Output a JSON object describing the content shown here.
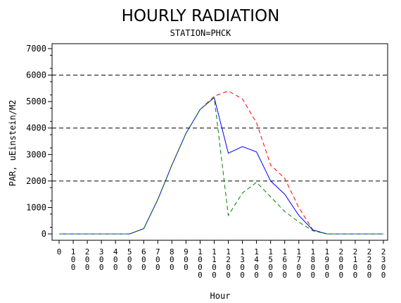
{
  "chart_data": {
    "type": "line",
    "title": "HOURLY RADIATION",
    "subtitle": "STATION=PHCK",
    "xlabel": "Hour",
    "ylabel": "PAR, uEinstein/M2",
    "ylim": [
      0,
      7000
    ],
    "xlim": [
      0,
      2300
    ],
    "y_ticks": [
      "0",
      "1000",
      "2000",
      "3000",
      "4000",
      "5000",
      "6000",
      "7000"
    ],
    "x_ticks": [
      "0",
      "100",
      "200",
      "300",
      "400",
      "500",
      "600",
      "700",
      "800",
      "900",
      "1000",
      "1100",
      "1200",
      "1300",
      "1400",
      "1500",
      "1600",
      "1700",
      "1800",
      "1900",
      "2000",
      "2100",
      "2200",
      "2300"
    ],
    "gridlines_y": [
      2000,
      4000,
      6000
    ],
    "grid_style": "dashed",
    "legend": "none",
    "x": [
      0,
      100,
      200,
      300,
      400,
      500,
      600,
      700,
      800,
      900,
      1000,
      1100,
      1200,
      1300,
      1400,
      1500,
      1600,
      1700,
      1800,
      1900,
      2000,
      2100,
      2200,
      2300
    ],
    "series": [
      {
        "color": "#ff0000",
        "dash": "dashed",
        "values": [
          0,
          0,
          0,
          0,
          0,
          0,
          200,
          1300,
          2600,
          3800,
          4700,
          5200,
          5400,
          5100,
          4200,
          2600,
          2100,
          1000,
          150,
          0,
          0,
          0,
          0,
          0
        ]
      },
      {
        "color": "#0000ff",
        "dash": "solid",
        "values": [
          0,
          0,
          0,
          0,
          0,
          0,
          200,
          1300,
          2600,
          3800,
          4700,
          5150,
          3050,
          3300,
          3100,
          2000,
          1500,
          700,
          150,
          0,
          0,
          0,
          0,
          0
        ]
      },
      {
        "color": "#008000",
        "dash": "dashed",
        "values": [
          0,
          0,
          0,
          0,
          0,
          0,
          200,
          1300,
          2600,
          3800,
          4700,
          5150,
          700,
          1550,
          1950,
          1400,
          850,
          450,
          120,
          0,
          0,
          0,
          0,
          0
        ]
      }
    ]
  }
}
